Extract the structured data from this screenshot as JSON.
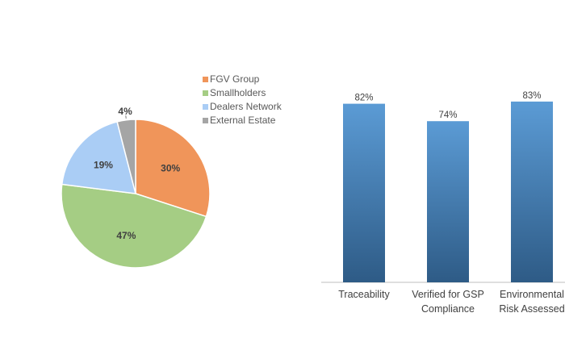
{
  "chart_data": [
    {
      "type": "pie",
      "categories": [
        "FGV Group",
        "Smallholders",
        "Dealers Network",
        "External Estate"
      ],
      "values": [
        30,
        47,
        19,
        4
      ],
      "value_labels": [
        "30%",
        "47%",
        "19%",
        "4%"
      ],
      "colors": [
        "#F0955A",
        "#A5CD84",
        "#AACDF5",
        "#A5A5A5"
      ],
      "legend": "right"
    },
    {
      "type": "bar",
      "categories": [
        [
          "Traceability"
        ],
        [
          "Verified for GSP",
          "Compliance"
        ],
        [
          "Environmental",
          "Risk Assessed"
        ]
      ],
      "values": [
        82,
        74,
        83
      ],
      "value_labels": [
        "82%",
        "74%",
        "83%"
      ],
      "ylim": [
        0,
        100
      ],
      "grid": false,
      "colors": {
        "bar_top": "#5B9BD5",
        "bar_bottom": "#2E5B86",
        "axis": "#BFBFBF"
      }
    }
  ]
}
